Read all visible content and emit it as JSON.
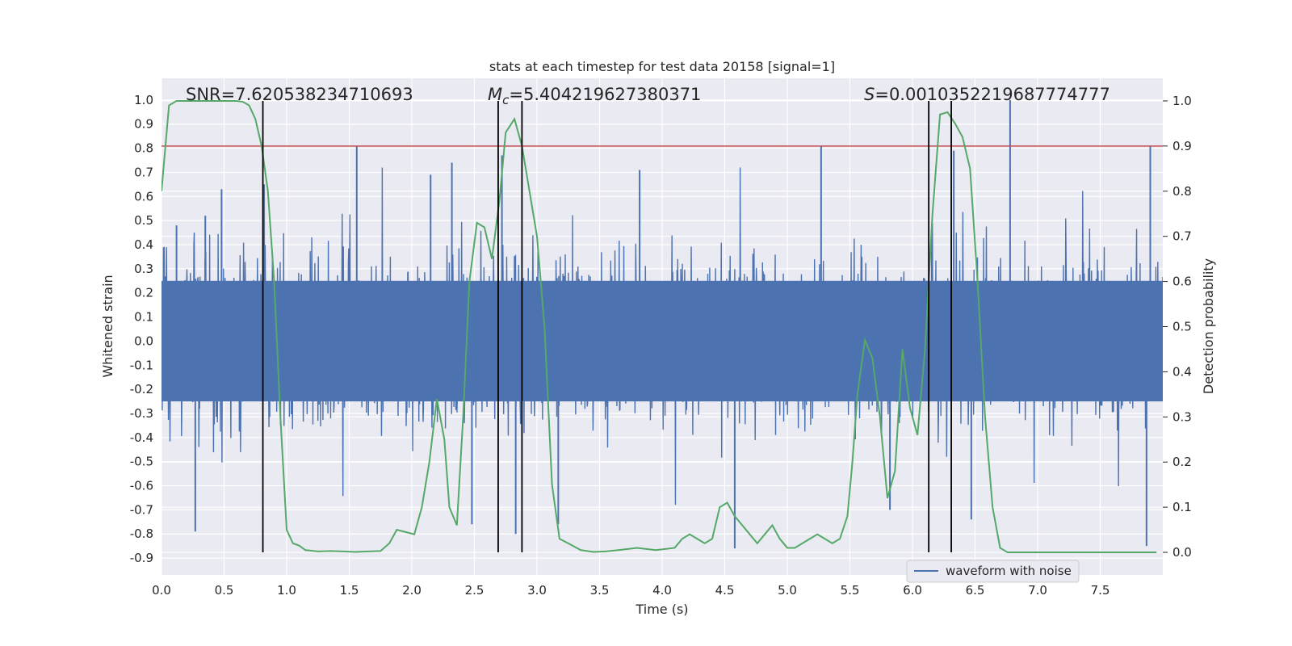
{
  "chart_data": {
    "type": "line",
    "title": "stats at each timestep for test data 20158 [signal=1]",
    "xlabel": "Time (s)",
    "ylabel_left": "Whitened strain",
    "ylabel_right": "Detection probability",
    "xlim": [
      0.0,
      8.0
    ],
    "ylim_left": [
      -0.97,
      1.09
    ],
    "ylim_right": [
      -0.05,
      1.05
    ],
    "x_ticks": [
      "0.0",
      "0.5",
      "1.0",
      "1.5",
      "2.0",
      "2.5",
      "3.0",
      "3.5",
      "4.0",
      "4.5",
      "5.0",
      "5.5",
      "6.0",
      "6.5",
      "7.0",
      "7.5"
    ],
    "y_ticks_left": [
      "1.0",
      "0.9",
      "0.8",
      "0.7",
      "0.6",
      "0.5",
      "0.4",
      "0.3",
      "0.2",
      "0.1",
      "0.0",
      "-0.1",
      "-0.2",
      "-0.3",
      "-0.4",
      "-0.5",
      "-0.6",
      "-0.7",
      "-0.8",
      "-0.9"
    ],
    "y_ticks_right": [
      "1.0",
      "0.9",
      "0.8",
      "0.7",
      "0.6",
      "0.5",
      "0.4",
      "0.3",
      "0.2",
      "0.1",
      "0.0"
    ],
    "grid": true,
    "legend": {
      "placement": "bottom-right",
      "entries": [
        "waveform with noise"
      ]
    },
    "annotations": {
      "snr": "SNR=7.620538234710693",
      "mc_prefix": "M",
      "mc_sub": "c",
      "mc_value": "=5.404219627380371",
      "s_prefix": "S",
      "s_value": "=0.0010352219687774777"
    },
    "threshold": {
      "axis": "right",
      "value": 0.9,
      "color": "#c44e52"
    },
    "vertical_lines": [
      0.81,
      2.69,
      2.88,
      6.13,
      6.31
    ],
    "series": [
      {
        "name": "waveform with noise",
        "axis": "left",
        "color": "#4c72b0",
        "description_stats": {
          "n_samples": 8000,
          "typical_amplitude": 0.3
        },
        "spikes": [
          {
            "x": 0.12,
            "y": 0.48
          },
          {
            "x": 0.35,
            "y": 0.52
          },
          {
            "x": 0.48,
            "y": 0.63
          },
          {
            "x": 0.82,
            "y": 0.65
          },
          {
            "x": 1.56,
            "y": 0.81
          },
          {
            "x": 2.15,
            "y": 0.69
          },
          {
            "x": 2.32,
            "y": 0.74
          },
          {
            "x": 2.72,
            "y": 0.77
          },
          {
            "x": 3.82,
            "y": 0.71
          },
          {
            "x": 5.27,
            "y": 0.81
          },
          {
            "x": 6.33,
            "y": 0.79
          },
          {
            "x": 6.78,
            "y": 1.0
          },
          {
            "x": 7.9,
            "y": 0.81
          },
          {
            "x": 0.27,
            "y": -0.79
          },
          {
            "x": 2.48,
            "y": -0.76
          },
          {
            "x": 2.83,
            "y": -0.8
          },
          {
            "x": 3.17,
            "y": -0.76
          },
          {
            "x": 4.58,
            "y": -0.86
          },
          {
            "x": 7.87,
            "y": -0.85
          },
          {
            "x": 5.82,
            "y": -0.7
          },
          {
            "x": 6.47,
            "y": -0.74
          }
        ]
      },
      {
        "name": "",
        "axis": "right",
        "color": "#55a868",
        "x": [
          0.0,
          0.06,
          0.12,
          0.2,
          0.3,
          0.4,
          0.5,
          0.6,
          0.65,
          0.7,
          0.75,
          0.8,
          0.85,
          0.9,
          0.95,
          1.0,
          1.05,
          1.1,
          1.15,
          1.25,
          1.35,
          1.45,
          1.55,
          1.65,
          1.75,
          1.82,
          1.88,
          1.95,
          2.02,
          2.08,
          2.14,
          2.2,
          2.26,
          2.3,
          2.36,
          2.41,
          2.46,
          2.52,
          2.58,
          2.64,
          2.7,
          2.75,
          2.82,
          2.88,
          2.94,
          3.0,
          3.06,
          3.12,
          3.18,
          3.25,
          3.35,
          3.45,
          3.55,
          3.65,
          3.8,
          3.95,
          4.1,
          4.16,
          4.22,
          4.28,
          4.34,
          4.4,
          4.46,
          4.52,
          4.58,
          4.64,
          4.7,
          4.76,
          4.82,
          4.88,
          4.94,
          5.0,
          5.06,
          5.12,
          5.18,
          5.24,
          5.3,
          5.36,
          5.42,
          5.48,
          5.52,
          5.56,
          5.62,
          5.68,
          5.74,
          5.8,
          5.86,
          5.92,
          5.98,
          6.04,
          6.1,
          6.16,
          6.22,
          6.28,
          6.34,
          6.4,
          6.46,
          6.52,
          6.58,
          6.64,
          6.7,
          6.76,
          6.85,
          7.0,
          7.5,
          7.95
        ],
        "y": [
          0.8,
          0.99,
          1.0,
          1.0,
          1.0,
          1.0,
          1.0,
          1.0,
          0.998,
          0.99,
          0.96,
          0.9,
          0.8,
          0.6,
          0.3,
          0.05,
          0.02,
          0.015,
          0.005,
          0.002,
          0.003,
          0.002,
          0.001,
          0.002,
          0.003,
          0.02,
          0.05,
          0.045,
          0.04,
          0.1,
          0.2,
          0.34,
          0.25,
          0.1,
          0.06,
          0.3,
          0.6,
          0.73,
          0.72,
          0.65,
          0.78,
          0.93,
          0.96,
          0.9,
          0.8,
          0.7,
          0.5,
          0.15,
          0.03,
          0.02,
          0.005,
          0.001,
          0.002,
          0.005,
          0.01,
          0.005,
          0.01,
          0.03,
          0.04,
          0.03,
          0.02,
          0.03,
          0.1,
          0.11,
          0.08,
          0.06,
          0.04,
          0.02,
          0.04,
          0.06,
          0.03,
          0.01,
          0.01,
          0.02,
          0.03,
          0.04,
          0.03,
          0.02,
          0.03,
          0.08,
          0.2,
          0.35,
          0.47,
          0.43,
          0.3,
          0.12,
          0.18,
          0.45,
          0.32,
          0.26,
          0.45,
          0.75,
          0.97,
          0.975,
          0.95,
          0.92,
          0.85,
          0.6,
          0.3,
          0.1,
          0.01,
          0.0,
          0.0,
          0.0,
          0.0,
          0.0
        ]
      }
    ]
  }
}
